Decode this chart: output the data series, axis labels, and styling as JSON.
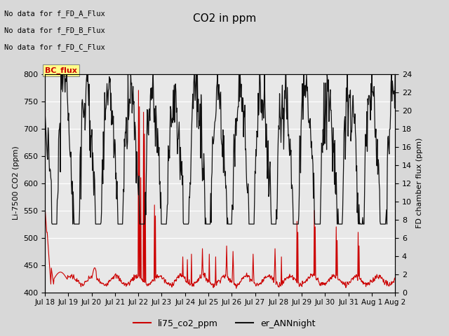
{
  "title": "CO2 in ppm",
  "ylabel_left": "Li-7500 CO2 (ppm)",
  "ylabel_right": "FD chamber flux (ppm)",
  "ylim_left": [
    400,
    800
  ],
  "ylim_right": [
    0,
    24
  ],
  "yticks_left": [
    400,
    450,
    500,
    550,
    600,
    650,
    700,
    750,
    800
  ],
  "yticks_right": [
    0,
    2,
    4,
    6,
    8,
    10,
    12,
    14,
    16,
    18,
    20,
    22,
    24
  ],
  "xlabel_ticks": [
    "Jul 18",
    "Jul 19",
    "Jul 20",
    "Jul 21",
    "Jul 22",
    "Jul 23",
    "Jul 24",
    "Jul 25",
    "Jul 26",
    "Jul 27",
    "Jul 28",
    "Jul 29",
    "Jul 30",
    "Jul 31",
    "Aug 1",
    "Aug 2"
  ],
  "legend_labels": [
    "li75_co2_ppm",
    "er_ANNnight"
  ],
  "legend_colors": [
    "#cc0000",
    "#111111"
  ],
  "no_data_texts": [
    "No data for f_FD_A_Flux",
    "No data for f_FD_B_Flux",
    "No data for f_FD_C_Flux"
  ],
  "bc_flux_label": "BC_flux",
  "bg_color": "#d8d8d8",
  "plot_bg_color": "#e8e8e8",
  "red_color": "#cc0000",
  "black_color": "#111111",
  "title_fontsize": 11,
  "axis_fontsize": 8,
  "tick_fontsize": 8
}
